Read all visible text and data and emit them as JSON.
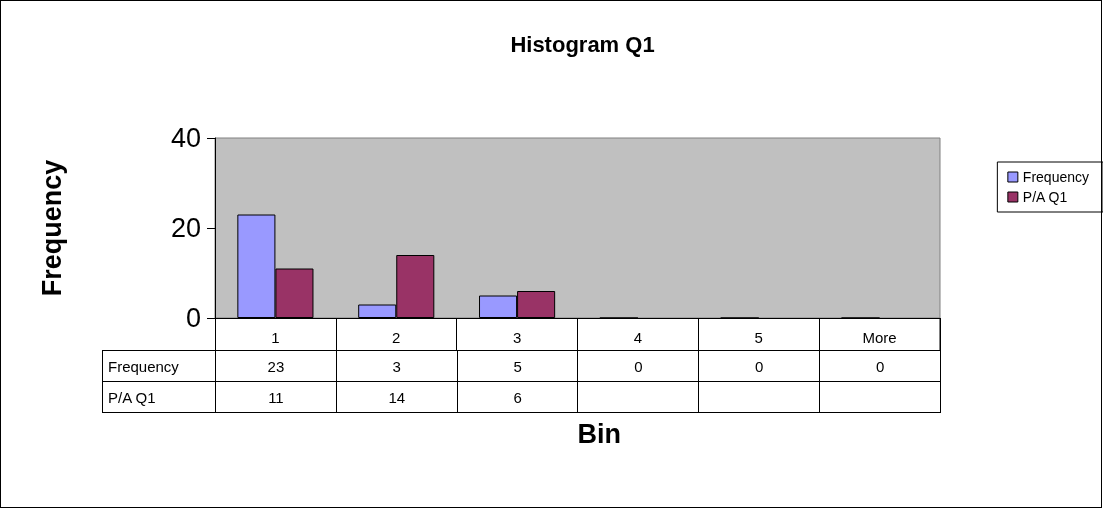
{
  "chart_data": {
    "type": "bar",
    "title": "Histogram Q1",
    "xlabel": "Bin",
    "ylabel": "Frequency",
    "categories": [
      "1",
      "2",
      "3",
      "4",
      "5",
      "More"
    ],
    "series": [
      {
        "name": "Frequency",
        "color": "#9999ff",
        "values": [
          23,
          3,
          5,
          0,
          0,
          0
        ]
      },
      {
        "name": "P/A Q1",
        "color": "#993366",
        "values": [
          11,
          14,
          6,
          null,
          null,
          null
        ]
      }
    ],
    "ylim": [
      0,
      40
    ],
    "yticks": [
      0,
      20,
      40
    ],
    "grid": false,
    "legend": "right",
    "data_labels": true
  }
}
